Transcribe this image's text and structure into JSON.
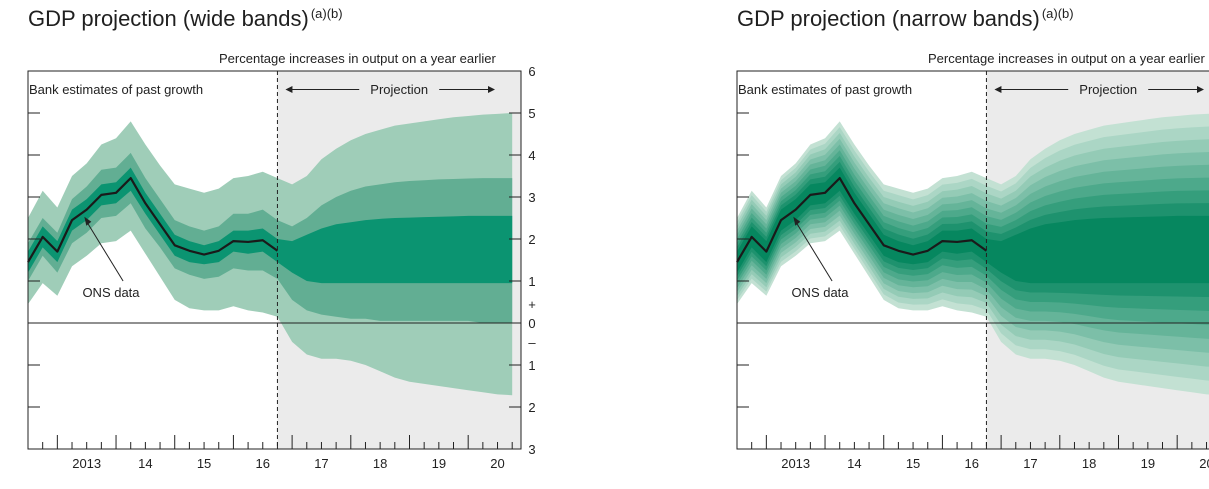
{
  "chart_data": [
    {
      "type": "area",
      "title": "GDP projection (wide bands)",
      "title_notes": "(a)(b)",
      "subtitle": "Percentage increases in output on a year earlier",
      "annotations": {
        "past": "Bank estimates of past growth",
        "projection": "Projection",
        "ons": "ONS data"
      },
      "x_tick_labels": [
        "2013",
        "14",
        "15",
        "16",
        "17",
        "18",
        "19",
        "20"
      ],
      "y_tick_labels": [
        "6",
        "5",
        "4",
        "3",
        "2",
        "1",
        "+",
        "0",
        "–",
        "1",
        "2",
        "3"
      ],
      "ylim": [
        -3,
        6
      ],
      "xlim": [
        2012.5,
        2020.9
      ],
      "projection_start": 2016.75,
      "band_style": "wide",
      "x": [
        2012.5,
        2012.75,
        2013.0,
        2013.25,
        2013.5,
        2013.75,
        2014.0,
        2014.25,
        2014.5,
        2014.75,
        2015.0,
        2015.25,
        2015.5,
        2015.75,
        2016.0,
        2016.25,
        2016.5,
        2016.75,
        2017.0,
        2017.25,
        2017.5,
        2017.75,
        2018.0,
        2018.25,
        2018.5,
        2018.75,
        2019.0,
        2019.25,
        2019.5,
        2019.75,
        2020.0,
        2020.25,
        2020.5,
        2020.75
      ],
      "ons_x": [
        2012.5,
        2012.75,
        2013.0,
        2013.25,
        2013.5,
        2013.75,
        2014.0,
        2014.25,
        2014.5,
        2014.75,
        2015.0,
        2015.25,
        2015.5,
        2015.75,
        2016.0,
        2016.25,
        2016.5,
        2016.75
      ],
      "ons_y": [
        1.45,
        2.05,
        1.7,
        2.45,
        2.7,
        3.05,
        3.1,
        3.45,
        2.85,
        2.35,
        1.85,
        1.72,
        1.63,
        1.72,
        1.95,
        1.93,
        1.97,
        1.72
      ],
      "series": [
        {
          "role": "band_90",
          "lower": [
            0.45,
            0.95,
            0.65,
            1.35,
            1.6,
            1.9,
            1.95,
            2.2,
            1.65,
            1.1,
            0.55,
            0.35,
            0.3,
            0.3,
            0.4,
            0.3,
            0.25,
            0.15,
            -0.45,
            -0.75,
            -0.85,
            -0.85,
            -0.9,
            -1.0,
            -1.15,
            -1.3,
            -1.4,
            -1.45,
            -1.5,
            -1.55,
            -1.6,
            -1.65,
            -1.7,
            -1.72
          ],
          "upper": [
            2.5,
            3.15,
            2.75,
            3.5,
            3.8,
            4.25,
            4.4,
            4.8,
            4.25,
            3.75,
            3.3,
            3.2,
            3.1,
            3.2,
            3.45,
            3.5,
            3.6,
            3.45,
            3.3,
            3.5,
            3.9,
            4.15,
            4.35,
            4.5,
            4.6,
            4.7,
            4.75,
            4.8,
            4.85,
            4.9,
            4.93,
            4.96,
            4.98,
            5.0
          ]
        },
        {
          "role": "band_60",
          "lower": [
            1.0,
            1.6,
            1.2,
            1.9,
            2.15,
            2.5,
            2.55,
            2.85,
            2.25,
            1.8,
            1.3,
            1.15,
            1.05,
            1.1,
            1.3,
            1.25,
            1.25,
            1.05,
            0.55,
            0.3,
            0.2,
            0.15,
            0.1,
            0.1,
            0.05,
            0.05,
            0.05,
            0.05,
            0.05,
            0.05,
            0.05,
            0.0,
            0.0,
            0.0
          ],
          "upper": [
            1.9,
            2.5,
            2.15,
            2.95,
            3.25,
            3.65,
            3.7,
            4.05,
            3.45,
            2.95,
            2.45,
            2.3,
            2.2,
            2.3,
            2.6,
            2.6,
            2.7,
            2.45,
            2.3,
            2.5,
            2.8,
            3.0,
            3.15,
            3.25,
            3.3,
            3.35,
            3.38,
            3.4,
            3.42,
            3.43,
            3.44,
            3.45,
            3.45,
            3.45
          ]
        },
        {
          "role": "band_30",
          "lower": [
            1.2,
            1.8,
            1.45,
            2.2,
            2.45,
            2.8,
            2.85,
            3.15,
            2.6,
            2.1,
            1.6,
            1.45,
            1.4,
            1.45,
            1.7,
            1.65,
            1.7,
            1.45,
            1.2,
            1.0,
            0.95,
            0.95,
            0.95,
            0.95,
            0.95,
            0.95,
            0.95,
            0.95,
            0.95,
            0.95,
            0.95,
            0.95,
            0.95,
            0.95
          ],
          "upper": [
            1.7,
            2.3,
            1.95,
            2.7,
            2.95,
            3.3,
            3.35,
            3.7,
            3.1,
            2.6,
            2.1,
            1.95,
            1.85,
            1.95,
            2.2,
            2.2,
            2.25,
            2.0,
            1.95,
            2.1,
            2.25,
            2.35,
            2.4,
            2.45,
            2.48,
            2.5,
            2.51,
            2.52,
            2.53,
            2.54,
            2.55,
            2.55,
            2.55,
            2.55
          ]
        }
      ]
    },
    {
      "type": "area",
      "title": "GDP projection (narrow bands)",
      "title_notes": "(a)(b)",
      "subtitle": "Percentage increases in output on a year earlier",
      "annotations": {
        "past": "Bank estimates of past growth",
        "projection": "Projection",
        "ons": "ONS data"
      },
      "x_tick_labels": [
        "2013",
        "14",
        "15",
        "16",
        "17",
        "18",
        "19",
        "20"
      ],
      "ylim": [
        -3,
        6
      ],
      "xlim": [
        2012.5,
        2020.9
      ],
      "projection_start": 2016.75,
      "band_style": "narrow",
      "band_count": 9
    }
  ],
  "colors": {
    "band_90": "#9fcdb8",
    "band_60": "#62ae93",
    "band_30": "#0b9471",
    "band_light": "#c3e1d3",
    "band_dark": "#06875f",
    "ons_line": "#1a1a1a",
    "projection_bg": "#ebebeb",
    "axis": "#222222"
  }
}
